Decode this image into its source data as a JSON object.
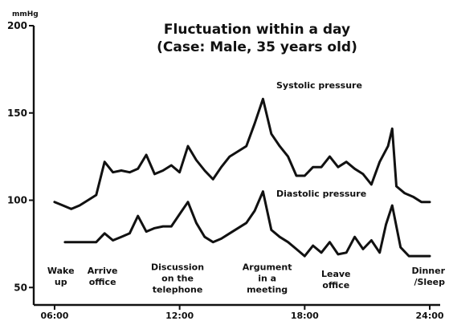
{
  "chart_data": {
    "type": "line",
    "title": [
      "Fluctuation within a day",
      "(Case: Male, 35 years old)"
    ],
    "y_unit": "mmHg",
    "ylim": [
      40,
      200
    ],
    "xlim": [
      5,
      24.5
    ],
    "y_ticks": [
      {
        "value": 200,
        "label": "200"
      },
      {
        "value": 150,
        "label": "150"
      },
      {
        "value": 100,
        "label": "100"
      },
      {
        "value": 50,
        "label": "50"
      }
    ],
    "x_ticks": [
      {
        "value": 6,
        "label": "06:00"
      },
      {
        "value": 12,
        "label": "12:00"
      },
      {
        "value": 18,
        "label": "18:00"
      },
      {
        "value": 24,
        "label": "24:00"
      }
    ],
    "grid": false,
    "legend": "labels placed next to lines",
    "series": [
      {
        "name": "Systolic pressure",
        "label_at": [
          12.7,
          158
        ],
        "points": [
          [
            6,
            99
          ],
          [
            6.4,
            97
          ],
          [
            6.8,
            95
          ],
          [
            7.2,
            97
          ],
          [
            7.6,
            100
          ],
          [
            8,
            103
          ],
          [
            8.4,
            122
          ],
          [
            8.8,
            116
          ],
          [
            9.2,
            117
          ],
          [
            9.6,
            116
          ],
          [
            10,
            118
          ],
          [
            10.4,
            126
          ],
          [
            10.8,
            115
          ],
          [
            11.2,
            117
          ],
          [
            11.6,
            120
          ],
          [
            12,
            116
          ],
          [
            12.4,
            131
          ],
          [
            12.8,
            123
          ],
          [
            13.2,
            117
          ],
          [
            13.6,
            112
          ],
          [
            14,
            119
          ],
          [
            14.4,
            125
          ],
          [
            14.8,
            128
          ],
          [
            15.2,
            131
          ],
          [
            15.6,
            144
          ],
          [
            16,
            158
          ],
          [
            16.4,
            138
          ],
          [
            16.8,
            131
          ],
          [
            17.2,
            125
          ],
          [
            17.6,
            114
          ],
          [
            18,
            114
          ],
          [
            18.4,
            119
          ],
          [
            18.8,
            119
          ],
          [
            19.2,
            125
          ],
          [
            19.6,
            119
          ],
          [
            20,
            122
          ],
          [
            20.4,
            118
          ],
          [
            20.8,
            115
          ],
          [
            21.2,
            109
          ],
          [
            21.6,
            122
          ],
          [
            22,
            131
          ],
          [
            22.2,
            141
          ],
          [
            22.4,
            108
          ],
          [
            22.8,
            104
          ],
          [
            23.2,
            102
          ],
          [
            23.6,
            99
          ],
          [
            24,
            99
          ]
        ]
      },
      {
        "name": "Diastolic pressure",
        "label_at": [
          12.7,
          99
        ],
        "points": [
          [
            6.5,
            76
          ],
          [
            7,
            76
          ],
          [
            7.5,
            76
          ],
          [
            8,
            76
          ],
          [
            8.4,
            81
          ],
          [
            8.8,
            77
          ],
          [
            9.2,
            79
          ],
          [
            9.6,
            81
          ],
          [
            10,
            91
          ],
          [
            10.4,
            82
          ],
          [
            10.8,
            84
          ],
          [
            11.2,
            85
          ],
          [
            11.6,
            85
          ],
          [
            12,
            92
          ],
          [
            12.4,
            99
          ],
          [
            12.8,
            87
          ],
          [
            13.2,
            79
          ],
          [
            13.6,
            76
          ],
          [
            14,
            78
          ],
          [
            14.4,
            81
          ],
          [
            14.8,
            84
          ],
          [
            15.2,
            87
          ],
          [
            15.6,
            94
          ],
          [
            16,
            105
          ],
          [
            16.4,
            83
          ],
          [
            16.8,
            79
          ],
          [
            17.2,
            76
          ],
          [
            17.6,
            72
          ],
          [
            18,
            68
          ],
          [
            18.4,
            74
          ],
          [
            18.8,
            70
          ],
          [
            19.2,
            76
          ],
          [
            19.6,
            69
          ],
          [
            20,
            70
          ],
          [
            20.4,
            79
          ],
          [
            20.8,
            72
          ],
          [
            21.2,
            77
          ],
          [
            21.6,
            70
          ],
          [
            21.9,
            86
          ],
          [
            22.2,
            97
          ],
          [
            22.6,
            73
          ],
          [
            23,
            68
          ],
          [
            23.4,
            68
          ],
          [
            23.8,
            68
          ],
          [
            24,
            68
          ]
        ]
      }
    ],
    "annotations": [
      {
        "lines": [
          "Wake",
          "up"
        ],
        "x": 6.3,
        "y": 58
      },
      {
        "lines": [
          "Arrive",
          "office"
        ],
        "x": 8.3,
        "y": 58
      },
      {
        "lines": [
          "Discussion",
          "on the",
          "telephone"
        ],
        "x": 11.9,
        "y": 60
      },
      {
        "lines": [
          "Argument",
          "in a",
          "meeting"
        ],
        "x": 16.2,
        "y": 60
      },
      {
        "lines": [
          "Leave",
          "office"
        ],
        "x": 19.5,
        "y": 56
      },
      {
        "lines": [
          "Dinner",
          "/Sleep"
        ],
        "x": 24.0,
        "y": 58
      }
    ]
  }
}
